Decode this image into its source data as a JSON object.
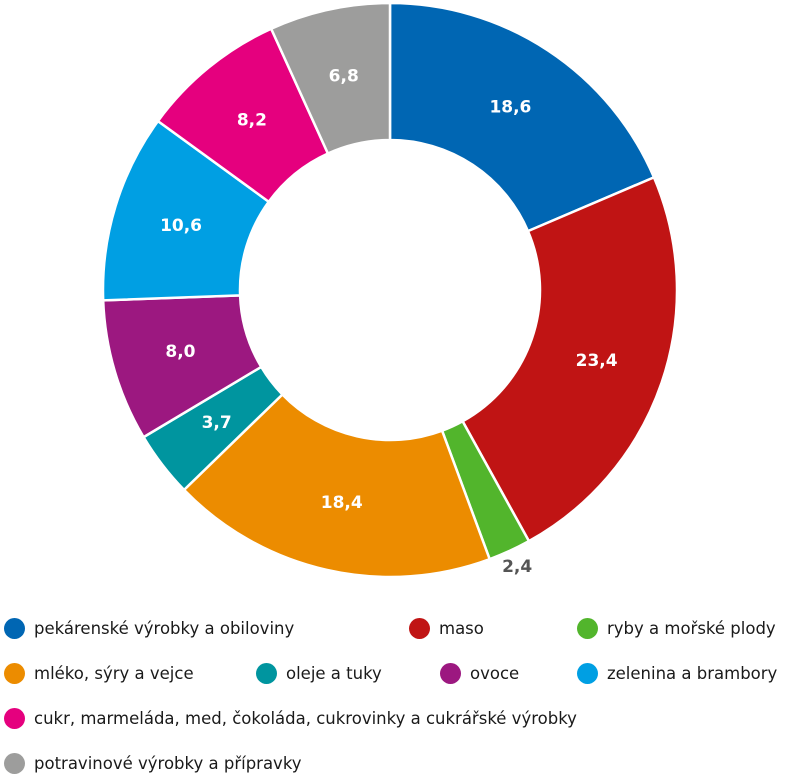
{
  "chart_data": {
    "type": "pie",
    "donut": true,
    "decimal_separator": ",",
    "slices": [
      {
        "label": "pekárenské výrobky a obiloviny",
        "value": 18.6,
        "display": "18,6",
        "color": "#0066b3",
        "label_color": "#ffffff"
      },
      {
        "label": "maso",
        "value": 23.4,
        "display": "23,4",
        "color": "#c01414",
        "label_color": "#ffffff"
      },
      {
        "label": "ryby a mořské plody",
        "value": 2.4,
        "display": "2,4",
        "color": "#52b52c",
        "label_color": "#555555"
      },
      {
        "label": "mléko, sýry a vejce",
        "value": 18.4,
        "display": "18,4",
        "color": "#ec8c00",
        "label_color": "#ffffff"
      },
      {
        "label": "oleje a tuky",
        "value": 3.7,
        "display": "3,7",
        "color": "#00959f",
        "label_color": "#ffffff"
      },
      {
        "label": "ovoce",
        "value": 8.0,
        "display": "8,0",
        "color": "#9c1880",
        "label_color": "#ffffff"
      },
      {
        "label": "zelenina a brambory",
        "value": 10.6,
        "display": "10,6",
        "color": "#009fe3",
        "label_color": "#ffffff"
      },
      {
        "label": "cukr, marmeláda, med, čokoláda, cukrovinky a cukrářské výrobky",
        "value": 8.2,
        "display": "8,2",
        "color": "#e5007e",
        "label_color": "#ffffff"
      },
      {
        "label": "potravinové výrobky a přípravky",
        "value": 6.8,
        "display": "6,8",
        "color": "#9d9d9c",
        "label_color": "#ffffff"
      }
    ],
    "legend_position": "bottom"
  }
}
